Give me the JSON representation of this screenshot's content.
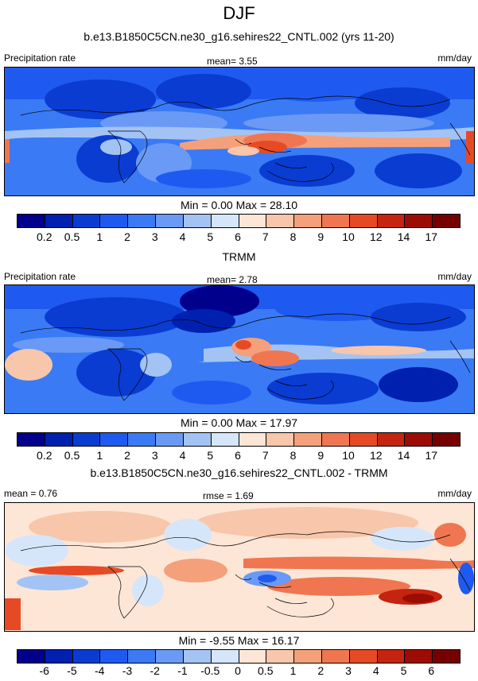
{
  "season": "DJF",
  "panels": [
    {
      "title": "b.e13.B1850C5CN.ne30_g16.sehires22_CNTL.002 (yrs 11-20)",
      "left_label": "Precipitation rate",
      "center_label": "mean=   3.55",
      "right_label": "mm/day",
      "minmax": "Min =   0.00 Max =  28.10",
      "levels": [
        "0.2",
        "0.5",
        "1",
        "2",
        "3",
        "4",
        "5",
        "6",
        "7",
        "8",
        "9",
        "10",
        "12",
        "14",
        "17"
      ],
      "colors": [
        "#00008c",
        "#0020b0",
        "#0a3cd2",
        "#1f5af0",
        "#3a7af5",
        "#6a9af5",
        "#a4c3f5",
        "#d6e6fa",
        "#fde6d6",
        "#f8c6aa",
        "#f4a07a",
        "#ef7650",
        "#e64a24",
        "#c52410",
        "#9c0c04",
        "#760000"
      ]
    },
    {
      "title": "TRMM",
      "left_label": "Precipitation rate",
      "center_label": "mean=   2.78",
      "right_label": "mm/day",
      "minmax": "Min =   0.00 Max =  17.97",
      "levels": [
        "0.2",
        "0.5",
        "1",
        "2",
        "3",
        "4",
        "5",
        "6",
        "7",
        "8",
        "9",
        "10",
        "12",
        "14",
        "17"
      ],
      "colors": [
        "#00008c",
        "#0020b0",
        "#0a3cd2",
        "#1f5af0",
        "#3a7af5",
        "#6a9af5",
        "#a4c3f5",
        "#d6e6fa",
        "#fde6d6",
        "#f8c6aa",
        "#f4a07a",
        "#ef7650",
        "#e64a24",
        "#c52410",
        "#9c0c04",
        "#760000"
      ]
    },
    {
      "title": "b.e13.B1850C5CN.ne30_g16.sehires22_CNTL.002 - TRMM",
      "left_label": "mean =   0.76",
      "center_label": "rmse =   1.69",
      "right_label": "mm/day",
      "minmax": "Min =  -9.55 Max =  16.17",
      "levels": [
        "-6",
        "-5",
        "-4",
        "-3",
        "-2",
        "-1",
        "-0.5",
        "0",
        "0.5",
        "1",
        "2",
        "3",
        "4",
        "5",
        "6"
      ],
      "colors": [
        "#00008c",
        "#0020b0",
        "#0a3cd2",
        "#1f5af0",
        "#3a7af5",
        "#6a9af5",
        "#a4c3f5",
        "#d6e6fa",
        "#fde6d6",
        "#f8c6aa",
        "#f4a07a",
        "#ef7650",
        "#e64a24",
        "#c52410",
        "#9c0c04",
        "#760000"
      ]
    }
  ]
}
